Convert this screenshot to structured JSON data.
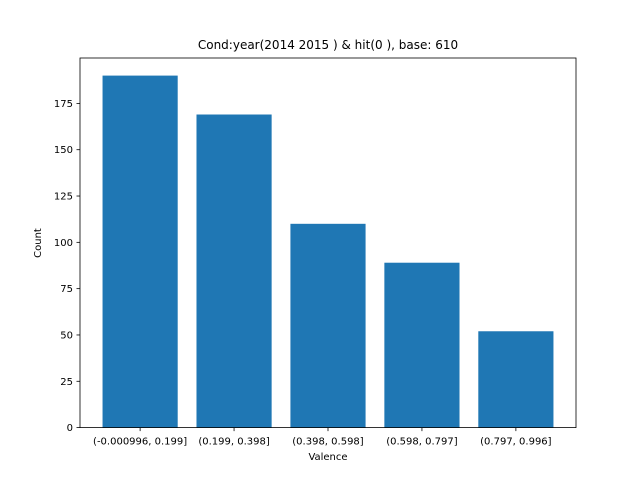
{
  "chart_data": {
    "type": "bar",
    "title": "Cond:year(2014 2015 ) & hit(0 ), base: 610",
    "xlabel": "Valence",
    "ylabel": "Count",
    "categories": [
      "(-0.000996, 0.199]",
      "(0.199, 0.398]",
      "(0.398, 0.598]",
      "(0.598, 0.797]",
      "(0.797, 0.996]"
    ],
    "values": [
      190,
      169,
      110,
      89,
      52
    ],
    "ylim": [
      0,
      199.5
    ],
    "yticks": [
      0,
      25,
      50,
      75,
      100,
      125,
      150,
      175
    ],
    "bar_color": "#1f77b4",
    "grid": false
  }
}
